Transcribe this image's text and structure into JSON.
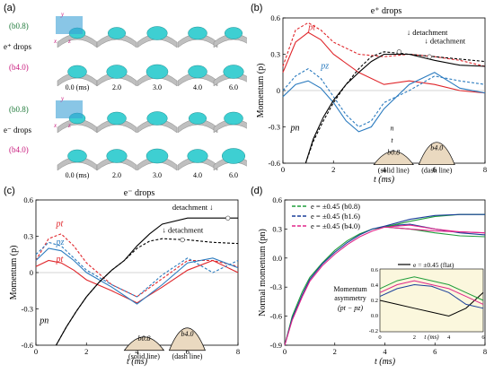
{
  "panel_a": {
    "label": "(a)",
    "group_plus": {
      "label": "e⁺ drops",
      "top": "(b0.8)",
      "bottom": "(b4.0)"
    },
    "group_minus": {
      "label": "e⁻ drops",
      "top": "(b0.8)",
      "bottom": "(b4.0)"
    },
    "axis_letters": [
      "x",
      "y",
      "z"
    ],
    "time_labels_plus": [
      "0.0 (ms)",
      "2.0",
      "3.0",
      "4.0",
      "6.0"
    ],
    "time_labels_minus": [
      "0.0 (ms)",
      "2.0",
      "3.0",
      "4.0",
      "6.0"
    ],
    "colors": {
      "drop": "#3ecfd2",
      "surface": "#bfbfbf",
      "b08": "#1f7a3a",
      "b40": "#c8197c"
    }
  },
  "panel_b": {
    "label": "(b)",
    "title": "e⁺ drops",
    "ylabel": "Momentum (p)",
    "xlabel": "t (ms)",
    "curve_labels": {
      "pt": "pt",
      "pz": "pz",
      "pn": "pn"
    },
    "annotations": [
      "↓ detachment",
      "↓ detachment"
    ],
    "inset": {
      "n": "n",
      "t": "t",
      "left_name": "b0.8",
      "left_desc": "(solid line)",
      "right_name": "b4.0",
      "right_desc": "(dash line)"
    },
    "chart_data": {
      "type": "line",
      "xlim": [
        0,
        8
      ],
      "ylim": [
        -0.6,
        0.6
      ],
      "xticks": [
        0,
        2,
        4,
        6,
        8
      ],
      "yticks": [
        -0.6,
        -0.3,
        0,
        0.3,
        0.6
      ],
      "series": [
        {
          "name": "pt",
          "style": "solid",
          "color": "#e0262b",
          "x": [
            0,
            0.5,
            1,
            1.5,
            2,
            3,
            4,
            5,
            6,
            7,
            8
          ],
          "y": [
            0.15,
            0.4,
            0.48,
            0.42,
            0.3,
            0.15,
            0.05,
            0.08,
            0.05,
            0.0,
            -0.02
          ]
        },
        {
          "name": "pt",
          "style": "dash",
          "color": "#e0262b",
          "x": [
            0,
            0.5,
            1,
            1.5,
            2,
            3,
            4,
            5,
            6,
            7,
            8
          ],
          "y": [
            0.2,
            0.5,
            0.56,
            0.5,
            0.4,
            0.3,
            0.28,
            0.3,
            0.28,
            0.25,
            0.2
          ]
        },
        {
          "name": "pz",
          "style": "solid",
          "color": "#2b7bbf",
          "x": [
            0,
            0.5,
            1,
            1.5,
            2,
            2.5,
            3,
            3.5,
            4,
            5,
            6,
            7,
            8
          ],
          "y": [
            -0.05,
            0.05,
            0.08,
            0.02,
            -0.1,
            -0.25,
            -0.34,
            -0.3,
            -0.15,
            0.05,
            0.15,
            0.02,
            -0.02
          ]
        },
        {
          "name": "pz",
          "style": "dash",
          "color": "#2b7bbf",
          "x": [
            0,
            0.5,
            1,
            1.5,
            2,
            2.5,
            3,
            3.5,
            4,
            5,
            6,
            7,
            8
          ],
          "y": [
            0.0,
            0.12,
            0.18,
            0.1,
            -0.05,
            -0.2,
            -0.3,
            -0.25,
            -0.1,
            0.0,
            0.12,
            0.08,
            0.05
          ]
        },
        {
          "name": "pn",
          "style": "solid",
          "color": "#000000",
          "x": [
            0.9,
            1.2,
            1.6,
            2,
            2.5,
            3,
            3.5,
            4,
            5,
            6,
            7,
            8
          ],
          "y": [
            -0.6,
            -0.4,
            -0.22,
            -0.08,
            0.05,
            0.15,
            0.24,
            0.3,
            0.3,
            0.25,
            0.21,
            0.2
          ]
        },
        {
          "name": "pn",
          "style": "dash",
          "color": "#000000",
          "x": [
            0.9,
            1.2,
            1.6,
            2,
            2.5,
            3,
            3.5,
            4,
            5,
            6,
            7,
            8
          ],
          "y": [
            -0.6,
            -0.42,
            -0.25,
            -0.1,
            0.05,
            0.18,
            0.28,
            0.32,
            0.3,
            0.28,
            0.26,
            0.24
          ]
        }
      ],
      "markers": [
        {
          "x": 5.8,
          "y": 0.28
        },
        {
          "x": 4.6,
          "y": 0.32
        }
      ]
    }
  },
  "panel_c": {
    "label": "(c)",
    "title": "e⁻ drops",
    "ylabel": "Momentum (p)",
    "xlabel": "t (ms)",
    "curve_labels": {
      "pt": "pt",
      "pz": "pz",
      "pn": "pn"
    },
    "annotations": [
      "detachment ↓",
      "↓ detachment"
    ],
    "inset": {
      "left_name": "b0.8",
      "left_desc": "(solid line)",
      "right_name": "b4.0",
      "right_desc": "(dash line)"
    },
    "chart_data": {
      "type": "line",
      "xlim": [
        0,
        8
      ],
      "ylim": [
        -0.6,
        0.6
      ],
      "xticks": [
        0,
        2,
        4,
        6,
        8
      ],
      "yticks": [
        -0.6,
        -0.3,
        0,
        0.3,
        0.6
      ],
      "series": [
        {
          "name": "pt",
          "style": "solid",
          "color": "#e0262b",
          "x": [
            0,
            0.5,
            1,
            1.5,
            2,
            3,
            4,
            5,
            6,
            7,
            8
          ],
          "y": [
            0.05,
            0.1,
            0.08,
            0.02,
            -0.06,
            -0.15,
            -0.25,
            -0.12,
            0.02,
            0.1,
            0.0
          ]
        },
        {
          "name": "pt",
          "style": "dash",
          "color": "#e0262b",
          "x": [
            0,
            0.5,
            1,
            1.5,
            2,
            3,
            4,
            5,
            6,
            7,
            8
          ],
          "y": [
            0.1,
            0.28,
            0.32,
            0.22,
            0.08,
            -0.1,
            -0.2,
            -0.05,
            0.1,
            0.1,
            0.05
          ]
        },
        {
          "name": "pz",
          "style": "solid",
          "color": "#2b7bbf",
          "x": [
            0,
            0.5,
            1,
            1.5,
            2,
            3,
            4,
            5,
            6,
            7,
            8
          ],
          "y": [
            0.1,
            0.2,
            0.18,
            0.1,
            0.0,
            -0.12,
            -0.26,
            -0.1,
            0.08,
            0.12,
            0.04
          ]
        },
        {
          "name": "pz",
          "style": "dash",
          "color": "#2b7bbf",
          "x": [
            0,
            0.5,
            1,
            1.5,
            2,
            3,
            4,
            5,
            6,
            7,
            8
          ],
          "y": [
            0.15,
            0.25,
            0.22,
            0.12,
            0.02,
            -0.1,
            -0.2,
            -0.02,
            0.12,
            0.0,
            0.1
          ]
        },
        {
          "name": "pn",
          "style": "solid",
          "color": "#000000",
          "x": [
            0.8,
            1.2,
            1.6,
            2,
            2.5,
            3,
            3.5,
            4,
            4.5,
            5,
            6,
            7,
            8
          ],
          "y": [
            -0.6,
            -0.45,
            -0.32,
            -0.2,
            -0.08,
            0.02,
            0.1,
            0.22,
            0.32,
            0.4,
            0.45,
            0.45,
            0.45
          ]
        },
        {
          "name": "pn",
          "style": "dash",
          "color": "#000000",
          "x": [
            0.8,
            1.2,
            1.6,
            2,
            2.5,
            3,
            3.5,
            4,
            4.5,
            5,
            6,
            7,
            8
          ],
          "y": [
            -0.6,
            -0.45,
            -0.32,
            -0.2,
            -0.08,
            0.02,
            0.1,
            0.2,
            0.26,
            0.28,
            0.27,
            0.25,
            0.24
          ]
        }
      ],
      "markers": [
        {
          "x": 7.6,
          "y": 0.45
        },
        {
          "x": 5.8,
          "y": 0.27
        }
      ]
    }
  },
  "panel_d": {
    "label": "(d)",
    "ylabel": "Normal momentum (pn)",
    "xlabel": "t (ms)",
    "legend": [
      {
        "label": "e = ±0.45 (b0.8)",
        "color": "#1f9d3a"
      },
      {
        "label": "e = ±0.45 (b1.6)",
        "color": "#1a3f9a"
      },
      {
        "label": "e = ±0.45 (b4.0)",
        "color": "#e0268a"
      }
    ],
    "inset": {
      "legend_label": "e = ±0.45 (flat)",
      "title_line1": "Momentum",
      "title_line2": "asymmetry",
      "title_line3": "(pt − pz)",
      "xlabel": "t (ms)",
      "xticks": [
        "0",
        "2",
        "4",
        "6"
      ],
      "yticks": [
        "0.6",
        "0.4",
        "0.2",
        "0.0",
        "-0.2"
      ]
    },
    "chart_data": {
      "type": "line",
      "xlim": [
        0,
        8
      ],
      "ylim": [
        -0.9,
        0.6
      ],
      "xticks": [
        0,
        2,
        4,
        6,
        8
      ],
      "yticks": [
        -0.9,
        -0.6,
        -0.3,
        0.0,
        0.3,
        0.6
      ],
      "series": [
        {
          "name": "b0.8",
          "color": "#1f9d3a",
          "x": [
            0,
            0.3,
            0.7,
            1,
            1.5,
            2,
            2.5,
            3,
            3.5,
            4,
            5,
            6,
            7,
            8
          ],
          "y": [
            -0.9,
            -0.6,
            -0.35,
            -0.2,
            -0.05,
            0.08,
            0.18,
            0.25,
            0.3,
            0.32,
            0.3,
            0.26,
            0.23,
            0.22
          ]
        },
        {
          "name": "b1.6",
          "color": "#1a3f9a",
          "x": [
            0,
            0.3,
            0.7,
            1,
            1.5,
            2,
            2.5,
            3,
            3.5,
            4,
            5,
            6,
            7,
            8
          ],
          "y": [
            -0.9,
            -0.62,
            -0.38,
            -0.22,
            -0.06,
            0.06,
            0.16,
            0.24,
            0.3,
            0.33,
            0.35,
            0.3,
            0.26,
            0.24
          ]
        },
        {
          "name": "b4.0",
          "color": "#e0268a",
          "x": [
            0,
            0.3,
            0.7,
            1,
            1.5,
            2,
            2.5,
            3,
            3.5,
            4,
            5,
            6,
            7,
            8
          ],
          "y": [
            -0.9,
            -0.64,
            -0.4,
            -0.24,
            -0.08,
            0.04,
            0.14,
            0.22,
            0.28,
            0.32,
            0.34,
            0.3,
            0.27,
            0.26
          ]
        },
        {
          "name": "b0.8 e-",
          "color": "#1f9d3a",
          "x": [
            4,
            5,
            6,
            7,
            8
          ],
          "y": [
            0.32,
            0.38,
            0.43,
            0.45,
            0.45
          ]
        },
        {
          "name": "b1.6 e-",
          "color": "#1a3f9a",
          "x": [
            4,
            5,
            6,
            7,
            8
          ],
          "y": [
            0.33,
            0.4,
            0.44,
            0.45,
            0.45
          ]
        },
        {
          "name": "b4.0 e-",
          "color": "#e0268a",
          "x": [
            4,
            5,
            6,
            7,
            8
          ],
          "y": [
            0.32,
            0.3,
            0.28,
            0.27,
            0.26
          ]
        }
      ],
      "inset_series": [
        {
          "name": "flat",
          "color": "#000000",
          "x": [
            0,
            1,
            2,
            3,
            4,
            5,
            6
          ],
          "y": [
            0.2,
            0.15,
            0.1,
            0.05,
            0.0,
            0.1,
            0.3
          ]
        },
        {
          "name": "b0.8",
          "color": "#1f9d3a",
          "x": [
            0,
            1,
            2,
            3,
            4,
            5,
            6
          ],
          "y": [
            0.35,
            0.45,
            0.5,
            0.45,
            0.4,
            0.3,
            0.2
          ]
        },
        {
          "name": "b1.6",
          "color": "#1a3f9a",
          "x": [
            0,
            1,
            2,
            3,
            4,
            5,
            6
          ],
          "y": [
            0.25,
            0.35,
            0.4,
            0.38,
            0.3,
            0.15,
            0.1
          ]
        },
        {
          "name": "b4.0",
          "color": "#e0268a",
          "x": [
            0,
            1,
            2,
            3,
            4,
            5,
            6
          ],
          "y": [
            0.3,
            0.4,
            0.45,
            0.4,
            0.35,
            0.25,
            0.15
          ]
        }
      ]
    }
  }
}
